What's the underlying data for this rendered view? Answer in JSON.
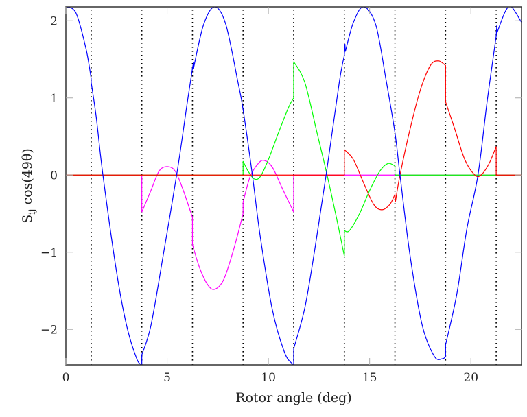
{
  "chart_data": {
    "type": "line",
    "title": "",
    "xlabel": "Rotor angle (deg)",
    "ylabel": "S_ij cos(49θ)",
    "ylabel_parts": {
      "main": "S",
      "sub": "ij",
      "rest": " cos(49θ)"
    },
    "xlim": [
      0,
      22.5
    ],
    "ylim": [
      -2.46,
      2.18
    ],
    "xticks": [
      0,
      5,
      10,
      15,
      20
    ],
    "yticks": [
      -2,
      -1,
      0,
      1,
      2
    ],
    "ytick_labels": [
      "−2",
      "−1",
      "0",
      "1",
      "2"
    ],
    "grid": false,
    "legend": null,
    "vertical_dotted_lines": [
      1.25,
      3.75,
      6.25,
      8.75,
      11.25,
      13.75,
      16.25,
      18.75,
      21.25
    ],
    "series": [
      {
        "name": "blue",
        "color": "#0000ff",
        "points": [
          [
            0,
            2.18
          ],
          [
            0.5,
            2.1
          ],
          [
            1.0,
            1.63
          ],
          [
            1.25,
            1.25
          ],
          [
            1.25,
            1.2
          ],
          [
            1.5,
            0.75
          ],
          [
            1.83,
            0.0
          ],
          [
            2.5,
            -1.25
          ],
          [
            3.0,
            -1.95
          ],
          [
            3.5,
            -2.38
          ],
          [
            3.75,
            -2.46
          ],
          [
            3.75,
            -2.33
          ],
          [
            4.2,
            -1.95
          ],
          [
            4.8,
            -1.05
          ],
          [
            5.5,
            0.05
          ],
          [
            6.0,
            0.95
          ],
          [
            6.25,
            1.38
          ],
          [
            6.3,
            1.46
          ],
          [
            6.3,
            1.38
          ],
          [
            6.8,
            1.95
          ],
          [
            7.35,
            2.18
          ],
          [
            7.9,
            1.95
          ],
          [
            8.5,
            1.2
          ],
          [
            8.75,
            0.85
          ],
          [
            9.2,
            0.02
          ],
          [
            9.6,
            -0.8
          ],
          [
            10.2,
            -1.75
          ],
          [
            10.8,
            -2.3
          ],
          [
            11.2,
            -2.45
          ],
          [
            11.25,
            -2.45
          ],
          [
            11.25,
            -2.25
          ],
          [
            11.8,
            -1.72
          ],
          [
            12.3,
            -0.95
          ],
          [
            12.85,
            0.0
          ],
          [
            13.5,
            1.2
          ],
          [
            13.75,
            1.55
          ],
          [
            13.78,
            1.7
          ],
          [
            13.8,
            1.6
          ],
          [
            14.2,
            1.98
          ],
          [
            14.7,
            2.18
          ],
          [
            15.3,
            1.95
          ],
          [
            15.8,
            1.25
          ],
          [
            16.25,
            0.55
          ],
          [
            16.5,
            0.0
          ],
          [
            17.0,
            -1.05
          ],
          [
            17.6,
            -1.95
          ],
          [
            18.2,
            -2.35
          ],
          [
            18.6,
            -2.38
          ],
          [
            18.75,
            -2.35
          ],
          [
            18.75,
            -2.2
          ],
          [
            19.3,
            -1.55
          ],
          [
            19.8,
            -0.7
          ],
          [
            20.35,
            0.0
          ],
          [
            20.8,
            0.95
          ],
          [
            21.25,
            1.8
          ],
          [
            21.28,
            1.94
          ],
          [
            21.3,
            1.85
          ],
          [
            21.7,
            2.12
          ],
          [
            22.0,
            2.18
          ],
          [
            22.5,
            1.98
          ]
        ]
      },
      {
        "name": "magenta",
        "color": "#ff00ff",
        "points": [
          [
            0,
            0
          ],
          [
            3.75,
            0
          ],
          [
            3.75,
            -0.48
          ],
          [
            4.2,
            -0.2
          ],
          [
            4.6,
            0.05
          ],
          [
            5.0,
            0.11
          ],
          [
            5.4,
            0.05
          ],
          [
            5.8,
            -0.2
          ],
          [
            6.25,
            -0.55
          ],
          [
            6.25,
            -0.9
          ],
          [
            6.6,
            -1.2
          ],
          [
            7.0,
            -1.42
          ],
          [
            7.35,
            -1.48
          ],
          [
            7.8,
            -1.35
          ],
          [
            8.3,
            -0.95
          ],
          [
            8.75,
            -0.5
          ],
          [
            8.75,
            -0.35
          ],
          [
            9.1,
            -0.02
          ],
          [
            9.5,
            0.15
          ],
          [
            9.8,
            0.19
          ],
          [
            10.2,
            0.1
          ],
          [
            10.7,
            -0.18
          ],
          [
            11.25,
            -0.48
          ],
          [
            11.25,
            0
          ],
          [
            22.5,
            0
          ]
        ]
      },
      {
        "name": "green",
        "color": "#00ff00",
        "points": [
          [
            0,
            0
          ],
          [
            8.75,
            0
          ],
          [
            8.75,
            0.18
          ],
          [
            9.0,
            0.05
          ],
          [
            9.3,
            -0.05
          ],
          [
            9.6,
            -0.02
          ],
          [
            10.0,
            0.2
          ],
          [
            10.5,
            0.55
          ],
          [
            11.0,
            0.88
          ],
          [
            11.25,
            1.0
          ],
          [
            11.25,
            1.47
          ],
          [
            11.8,
            1.2
          ],
          [
            12.4,
            0.55
          ],
          [
            12.9,
            0.0
          ],
          [
            13.4,
            -0.6
          ],
          [
            13.75,
            -1.05
          ],
          [
            13.75,
            -0.72
          ],
          [
            14.0,
            -0.72
          ],
          [
            14.5,
            -0.5
          ],
          [
            15.0,
            -0.2
          ],
          [
            15.5,
            0.05
          ],
          [
            15.9,
            0.15
          ],
          [
            16.25,
            0.12
          ],
          [
            16.25,
            0
          ],
          [
            22.5,
            0
          ]
        ]
      },
      {
        "name": "red",
        "color": "#ff0000",
        "points": [
          [
            0,
            0
          ],
          [
            13.75,
            0
          ],
          [
            13.75,
            0.33
          ],
          [
            14.2,
            0.2
          ],
          [
            14.7,
            -0.1
          ],
          [
            15.2,
            -0.38
          ],
          [
            15.6,
            -0.45
          ],
          [
            16.0,
            -0.38
          ],
          [
            16.25,
            -0.25
          ],
          [
            16.27,
            -0.35
          ],
          [
            16.5,
            0.0
          ],
          [
            17.0,
            0.6
          ],
          [
            17.5,
            1.1
          ],
          [
            18.0,
            1.42
          ],
          [
            18.4,
            1.48
          ],
          [
            18.75,
            1.42
          ],
          [
            18.75,
            0.95
          ],
          [
            19.2,
            0.6
          ],
          [
            19.7,
            0.2
          ],
          [
            20.2,
            0.0
          ],
          [
            20.5,
            0.0
          ],
          [
            20.9,
            0.15
          ],
          [
            21.25,
            0.37
          ],
          [
            21.25,
            0
          ],
          [
            22.5,
            0
          ]
        ]
      }
    ]
  }
}
